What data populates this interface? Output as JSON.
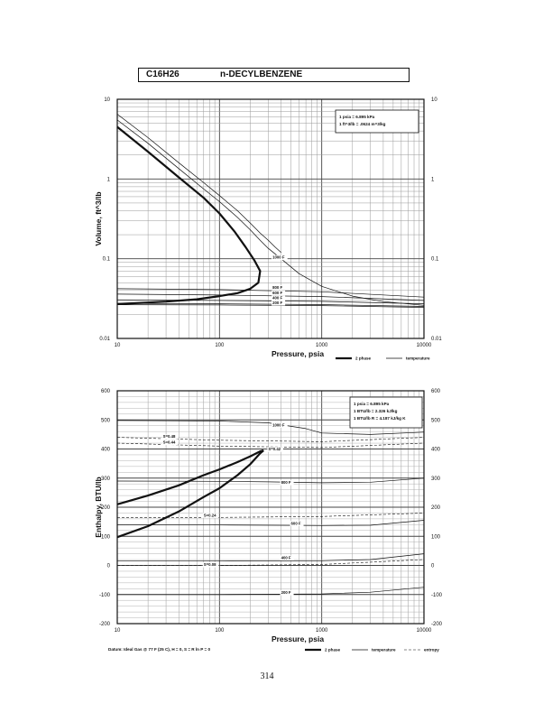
{
  "header": {
    "formula": "C16H26",
    "name": "n-DECYLBENZENE"
  },
  "page_number": "314",
  "chart_data": [
    {
      "type": "line",
      "xscale": "log",
      "yscale": "log",
      "xlim": [
        10,
        10000
      ],
      "ylim": [
        0.01,
        10
      ],
      "xlabel": "Pressure,  psia",
      "ylabel": "Volume, ft^3/lb",
      "x_ticks": [
        "10",
        "100",
        "1000",
        "10000"
      ],
      "y_ticks": [
        "0.01",
        "0.1",
        "1",
        "10"
      ],
      "right_ticks": [
        "0.01",
        "0.1",
        "1",
        "10"
      ],
      "info_box": [
        "1 psia  =  6.895 kPa",
        "1 ft^3/lb  =  .0624 m^3/kg"
      ],
      "legend": [
        "2 phase",
        "temperature"
      ],
      "labels": [
        {
          "text": "1000 F",
          "x": 330,
          "y": 0.1
        },
        {
          "text": "800 F",
          "x": 330,
          "y": 0.042
        },
        {
          "text": "600 F",
          "x": 330,
          "y": 0.036
        },
        {
          "text": "400 F",
          "x": 330,
          "y": 0.031
        },
        {
          "text": "200 F",
          "x": 330,
          "y": 0.027
        }
      ],
      "series": [
        {
          "style": "phase",
          "x": [
            10,
            20,
            40,
            70,
            100,
            140,
            180,
            220,
            250,
            240,
            200,
            150,
            100,
            60,
            30,
            10
          ],
          "y": [
            4.5,
            2.2,
            1.05,
            0.58,
            0.37,
            0.22,
            0.14,
            0.095,
            0.07,
            0.05,
            0.042,
            0.037,
            0.034,
            0.031,
            0.029,
            0.027
          ]
        },
        {
          "style": "temperature",
          "x": [
            10,
            20,
            40,
            70,
            100,
            150,
            200,
            250,
            300,
            350,
            400
          ],
          "y": [
            5.5,
            2.8,
            1.35,
            0.75,
            0.52,
            0.33,
            0.23,
            0.17,
            0.135,
            0.115,
            0.1
          ]
        },
        {
          "style": "temperature",
          "x": [
            10,
            20,
            40,
            70,
            100,
            150,
            200,
            250,
            300,
            350,
            400
          ],
          "y": [
            6.5,
            3.3,
            1.6,
            0.9,
            0.62,
            0.4,
            0.28,
            0.21,
            0.17,
            0.14,
            0.12
          ]
        },
        {
          "style": "temperature",
          "x": [
            400,
            600,
            1000,
            2000,
            4000,
            10000
          ],
          "y": [
            0.1,
            0.065,
            0.045,
            0.034,
            0.029,
            0.026
          ]
        },
        {
          "style": "temperature",
          "x": [
            10,
            100,
            1000,
            10000
          ],
          "y": [
            0.0265,
            0.0263,
            0.0258,
            0.0245
          ]
        },
        {
          "style": "temperature",
          "x": [
            10,
            100,
            1000,
            10000
          ],
          "y": [
            0.0275,
            0.0272,
            0.0266,
            0.0252
          ]
        },
        {
          "style": "temperature",
          "x": [
            10,
            100,
            1000,
            10000
          ],
          "y": [
            0.0305,
            0.03,
            0.0292,
            0.0272
          ]
        },
        {
          "style": "temperature",
          "x": [
            10,
            100,
            1000,
            10000
          ],
          "y": [
            0.036,
            0.035,
            0.0335,
            0.03
          ]
        },
        {
          "style": "temperature",
          "x": [
            10,
            100,
            1000,
            10000
          ],
          "y": [
            0.042,
            0.041,
            0.0385,
            0.033
          ]
        }
      ]
    },
    {
      "type": "line",
      "xscale": "log",
      "yscale": "linear",
      "xlim": [
        10,
        10000
      ],
      "ylim": [
        -200,
        600
      ],
      "xlabel": "Pressure,  psia",
      "ylabel": "Enthalpy, BTU/lb",
      "x_ticks": [
        "10",
        "100",
        "1000",
        "10000"
      ],
      "y_ticks": [
        "-200",
        "-100",
        "0",
        "100",
        "200",
        "300",
        "400",
        "500",
        "600"
      ],
      "right_ticks": [
        "-200",
        "-100",
        "0",
        "100",
        "200",
        "300",
        "400",
        "500",
        "600"
      ],
      "info_box": [
        "1 psia  =  6.895 kPa",
        "1 BTU/lb  =  2.326 kJ/kg",
        "1 BTU/lb R  =  4.187 kJ/kg K"
      ],
      "legend": [
        "2 phase",
        "temperature",
        "entropy"
      ],
      "footnote": "Datum: Ideal Gas @ 77 F (25 C),  H = 0,  S = R ln P = 0",
      "labels": [
        {
          "text": "1000 F",
          "x": 330,
          "y": 478
        },
        {
          "text": "S=0.48",
          "x": 28,
          "y": 438
        },
        {
          "text": "S=0.44",
          "x": 28,
          "y": 418
        },
        {
          "text": "S=0.42",
          "x": 300,
          "y": 395
        },
        {
          "text": "800 F",
          "x": 400,
          "y": 280
        },
        {
          "text": "S=0.24",
          "x": 70,
          "y": 168
        },
        {
          "text": "600 F",
          "x": 500,
          "y": 140
        },
        {
          "text": "400 F",
          "x": 400,
          "y": 22
        },
        {
          "text": "S=0.08",
          "x": 70,
          "y": -2
        },
        {
          "text": "200 F",
          "x": 400,
          "y": -98
        }
      ],
      "series": [
        {
          "style": "phase",
          "x": [
            10,
            20,
            40,
            70,
            100,
            150,
            200,
            250,
            270
          ],
          "y": [
            210,
            240,
            275,
            310,
            330,
            355,
            375,
            392,
            395
          ]
        },
        {
          "style": "phase",
          "x": [
            10,
            20,
            40,
            70,
            100,
            150,
            200,
            250,
            270
          ],
          "y": [
            97,
            135,
            185,
            235,
            265,
            310,
            348,
            385,
            395
          ]
        },
        {
          "style": "temperature",
          "x": [
            10,
            30,
            100,
            300,
            700,
            1000,
            3000,
            10000
          ],
          "y": [
            498,
            497,
            496,
            490,
            470,
            455,
            450,
            458
          ]
        },
        {
          "style": "temperature",
          "x": [
            10,
            100,
            300,
            1000,
            3000,
            10000
          ],
          "y": [
            290,
            289,
            287,
            284,
            286,
            300
          ]
        },
        {
          "style": "temperature",
          "x": [
            10,
            100,
            1000,
            3000,
            10000
          ],
          "y": [
            140,
            139,
            137,
            138,
            155
          ]
        },
        {
          "style": "temperature",
          "x": [
            10,
            100,
            1000,
            3000,
            10000
          ],
          "y": [
            15,
            15,
            16,
            20,
            40
          ]
        },
        {
          "style": "temperature",
          "x": [
            10,
            100,
            1000,
            3000,
            10000
          ],
          "y": [
            -100,
            -100,
            -98,
            -92,
            -75
          ]
        },
        {
          "style": "entropy",
          "x": [
            10,
            100,
            1000,
            10000
          ],
          "y": [
            440,
            430,
            425,
            440
          ]
        },
        {
          "style": "entropy",
          "x": [
            10,
            100,
            1000,
            10000
          ],
          "y": [
            420,
            410,
            405,
            420
          ]
        },
        {
          "style": "entropy",
          "x": [
            10,
            100,
            1000,
            10000
          ],
          "y": [
            165,
            165,
            168,
            180
          ]
        },
        {
          "style": "entropy",
          "x": [
            10,
            100,
            1000,
            10000
          ],
          "y": [
            0,
            0,
            3,
            20
          ]
        }
      ]
    }
  ]
}
